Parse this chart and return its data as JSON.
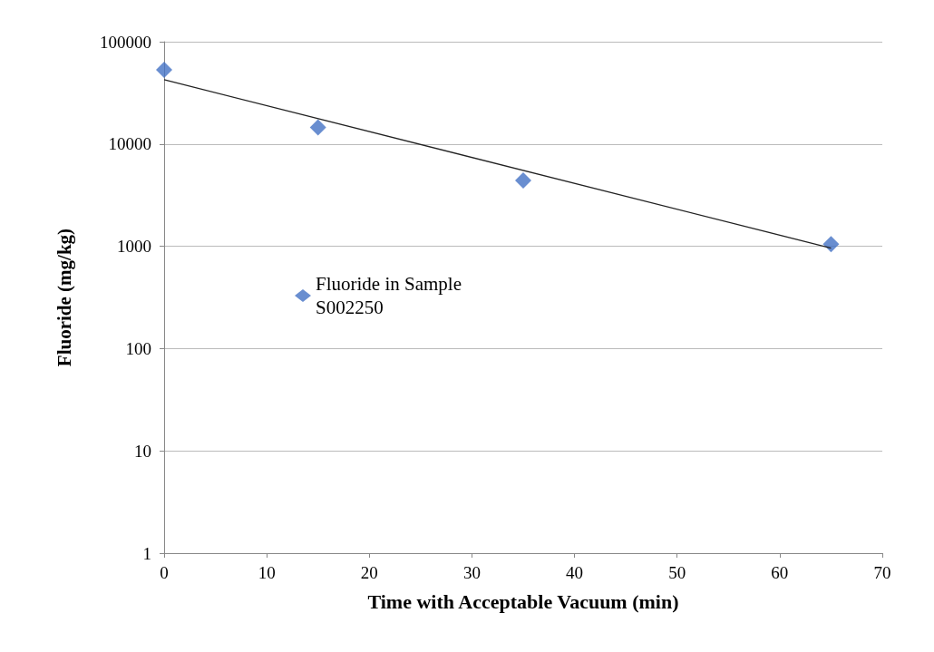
{
  "chart_data": {
    "type": "scatter",
    "xlabel": "Time with Acceptable Vacuum (min)",
    "ylabel": "Fluoride (mg/kg)",
    "series": [
      {
        "name": "Fluoride in Sample S002250",
        "color": "#4472c4",
        "marker": "diamond",
        "x": [
          0,
          15,
          35,
          65
        ],
        "values": [
          53000,
          14500,
          4400,
          1050
        ]
      },
      {
        "type": "line",
        "color": "#222222",
        "marker": "none",
        "x": [
          0,
          65
        ],
        "values": [
          42500,
          960
        ]
      }
    ],
    "xlim": [
      0,
      70
    ],
    "xticks": [
      0,
      10,
      20,
      30,
      40,
      50,
      60,
      70
    ],
    "ylim": [
      1,
      100000
    ],
    "yticks": [
      1,
      10,
      100,
      1000,
      10000,
      100000
    ],
    "log": "y",
    "grid": "y",
    "legend": "left"
  }
}
